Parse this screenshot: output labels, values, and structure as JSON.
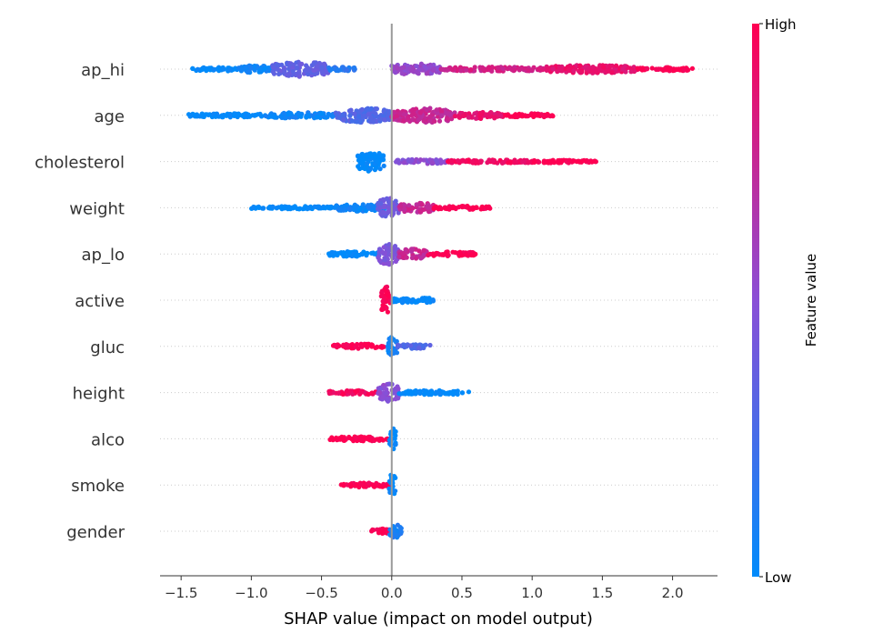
{
  "chart_data": {
    "type": "scatter",
    "subtype": "shap-beeswarm-summary",
    "title": "",
    "xlabel": "SHAP value (impact on model output)",
    "ylabel": "",
    "xlim": [
      -1.65,
      2.32
    ],
    "xticks": [
      "−1.5",
      "−1.0",
      "−0.5",
      "0.0",
      "0.5",
      "1.0",
      "1.5",
      "2.0"
    ],
    "xtick_values": [
      -1.5,
      -1.0,
      -0.5,
      0.0,
      0.5,
      1.0,
      1.5,
      2.0
    ],
    "grid": false,
    "zero_line": true,
    "colorbar": {
      "label": "Feature value",
      "high_label": "High",
      "low_label": "Low",
      "color_low": "#008bfb",
      "color_mid": "#8a4fd6",
      "color_high": "#ff0052"
    },
    "features": [
      {
        "name": "ap_hi",
        "segments": [
          {
            "from": -1.42,
            "to": -1.1,
            "level": 0.0,
            "width": 0.12
          },
          {
            "from": -1.1,
            "to": -0.85,
            "level": 0.05,
            "width": 0.2
          },
          {
            "from": -0.85,
            "to": -0.45,
            "level": 0.35,
            "width": 0.42
          },
          {
            "from": -0.45,
            "to": -0.25,
            "level": 0.15,
            "width": 0.12
          },
          {
            "from": 0.0,
            "to": 0.35,
            "level": 0.55,
            "width": 0.3
          },
          {
            "from": 0.35,
            "to": 1.1,
            "level": 0.8,
            "width": 0.12
          },
          {
            "from": 1.1,
            "to": 1.75,
            "level": 0.9,
            "width": 0.22
          },
          {
            "from": 1.75,
            "to": 2.15,
            "level": 1.0,
            "width": 0.1
          }
        ]
      },
      {
        "name": "age",
        "segments": [
          {
            "from": -1.45,
            "to": -0.9,
            "level": 0.0,
            "width": 0.1
          },
          {
            "from": -0.9,
            "to": -0.4,
            "level": 0.05,
            "width": 0.16
          },
          {
            "from": -0.4,
            "to": 0.0,
            "level": 0.3,
            "width": 0.4
          },
          {
            "from": 0.0,
            "to": 0.45,
            "level": 0.75,
            "width": 0.4
          },
          {
            "from": 0.45,
            "to": 0.8,
            "level": 0.9,
            "width": 0.18
          },
          {
            "from": 0.8,
            "to": 1.15,
            "level": 1.0,
            "width": 0.1
          }
        ]
      },
      {
        "name": "cholesterol",
        "segments": [
          {
            "from": -0.25,
            "to": -0.05,
            "level": 0.0,
            "width": 0.55
          },
          {
            "from": 0.03,
            "to": 0.4,
            "level": 0.5,
            "width": 0.12
          },
          {
            "from": 0.4,
            "to": 1.0,
            "level": 0.95,
            "width": 0.1
          },
          {
            "from": 1.0,
            "to": 1.47,
            "level": 1.0,
            "width": 0.08
          }
        ]
      },
      {
        "name": "weight",
        "segments": [
          {
            "from": -1.0,
            "to": -0.4,
            "level": 0.0,
            "width": 0.08
          },
          {
            "from": -0.4,
            "to": -0.05,
            "level": 0.05,
            "width": 0.2
          },
          {
            "from": -0.1,
            "to": 0.05,
            "level": 0.4,
            "width": 0.55
          },
          {
            "from": 0.05,
            "to": 0.3,
            "level": 0.75,
            "width": 0.3
          },
          {
            "from": 0.3,
            "to": 0.7,
            "level": 1.0,
            "width": 0.1
          }
        ]
      },
      {
        "name": "ap_lo",
        "segments": [
          {
            "from": -0.45,
            "to": -0.1,
            "level": 0.0,
            "width": 0.14
          },
          {
            "from": -0.1,
            "to": 0.05,
            "level": 0.45,
            "width": 0.6
          },
          {
            "from": 0.05,
            "to": 0.25,
            "level": 0.75,
            "width": 0.28
          },
          {
            "from": 0.25,
            "to": 0.6,
            "level": 1.0,
            "width": 0.12
          }
        ]
      },
      {
        "name": "active",
        "segments": [
          {
            "from": -0.08,
            "to": 0.0,
            "level": 1.0,
            "width": 0.75
          },
          {
            "from": 0.0,
            "to": 0.3,
            "level": 0.0,
            "width": 0.16
          }
        ]
      },
      {
        "name": "gluc",
        "segments": [
          {
            "from": -0.42,
            "to": -0.05,
            "level": 1.0,
            "width": 0.14
          },
          {
            "from": -0.03,
            "to": 0.04,
            "level": 0.05,
            "width": 0.55
          },
          {
            "from": 0.04,
            "to": 0.28,
            "level": 0.3,
            "width": 0.12
          }
        ]
      },
      {
        "name": "height",
        "segments": [
          {
            "from": -0.45,
            "to": -0.1,
            "level": 0.95,
            "width": 0.12
          },
          {
            "from": -0.1,
            "to": 0.05,
            "level": 0.5,
            "width": 0.5
          },
          {
            "from": 0.05,
            "to": 0.56,
            "level": 0.0,
            "width": 0.12
          }
        ]
      },
      {
        "name": "alco",
        "segments": [
          {
            "from": -0.44,
            "to": -0.02,
            "level": 1.0,
            "width": 0.12
          },
          {
            "from": -0.02,
            "to": 0.03,
            "level": 0.0,
            "width": 0.6
          }
        ]
      },
      {
        "name": "smoke",
        "segments": [
          {
            "from": -0.36,
            "to": -0.02,
            "level": 1.0,
            "width": 0.12
          },
          {
            "from": -0.02,
            "to": 0.03,
            "level": 0.0,
            "width": 0.6
          }
        ]
      },
      {
        "name": "gender",
        "segments": [
          {
            "from": -0.15,
            "to": -0.02,
            "level": 1.0,
            "width": 0.14
          },
          {
            "from": -0.02,
            "to": 0.07,
            "level": 0.1,
            "width": 0.4
          }
        ]
      }
    ]
  }
}
